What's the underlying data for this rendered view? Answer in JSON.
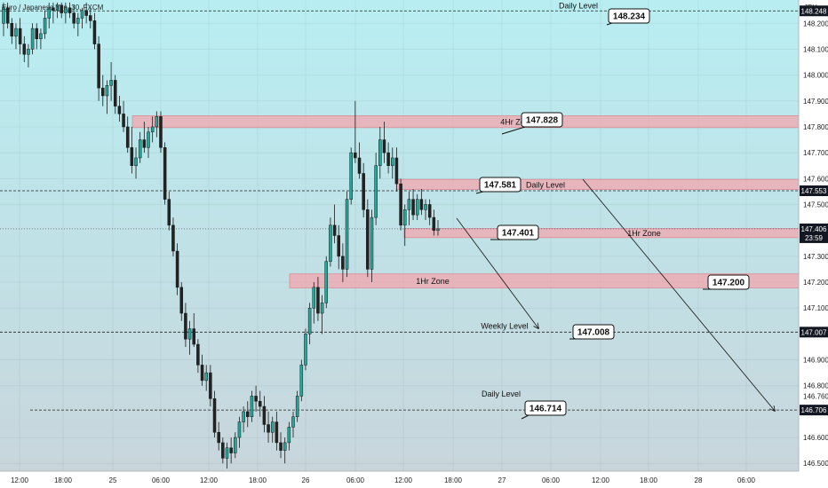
{
  "header": {
    "symbol": "Euro / Japanese Yen, 30, FXCM",
    "currency": "JPY"
  },
  "colors": {
    "bull": "#26a69a",
    "bear": "#222222",
    "zone_fill": "#f4a6ad",
    "zone_stroke": "#e0505c",
    "bg_top": "#b8eef2",
    "bg_bottom": "#c8d6dc",
    "tag_bg": "#131722"
  },
  "chart_data": {
    "type": "candlestick",
    "x_ticks": [
      "12:00",
      "18:00",
      "25",
      "06:00",
      "12:00",
      "18:00",
      "26",
      "06:00",
      "12:00",
      "18:00",
      "27",
      "06:00",
      "12:00",
      "18:00",
      "28",
      "06:00"
    ],
    "y_ticks": [
      "148.248",
      "148.200",
      "148.100",
      "148.000",
      "147.900",
      "147.800",
      "147.700",
      "147.600",
      "147.553",
      "147.500",
      "147.406",
      "147.300",
      "147.200",
      "147.100",
      "147.007",
      "146.900",
      "146.800",
      "146.760",
      "146.706",
      "146.600",
      "146.500"
    ],
    "ylim": [
      146.47,
      148.29
    ],
    "current_price": {
      "value": "147.406",
      "countdown": "23:59"
    },
    "levels": [
      {
        "price": 148.248,
        "label": "Daily Level",
        "tag": "148.248"
      },
      {
        "price": 147.553,
        "label": "Daily Level",
        "tag": "147.553"
      },
      {
        "price": 147.007,
        "label": "Weekly Level",
        "tag": "147.007"
      },
      {
        "price": 146.706,
        "label": "Daily Level",
        "tag": "146.706"
      }
    ],
    "zones": [
      {
        "label": "4Hr Zone",
        "top": 147.843,
        "bottom": 147.797
      },
      {
        "label": "Daily Level",
        "top": 147.597,
        "bottom": 147.558
      },
      {
        "label": "1Hr Zone",
        "top": 147.407,
        "bottom": 147.372
      },
      {
        "label": "1Hr Zone",
        "top": 147.232,
        "bottom": 147.178
      }
    ],
    "callouts": [
      "148.234",
      "147.828",
      "147.581",
      "147.401",
      "147.200",
      "147.008",
      "146.714"
    ],
    "candles": [
      [
        148.2,
        148.28,
        148.15,
        148.26
      ],
      [
        148.26,
        148.28,
        148.18,
        148.2
      ],
      [
        148.2,
        148.22,
        148.12,
        148.15
      ],
      [
        148.15,
        148.2,
        148.1,
        148.18
      ],
      [
        148.18,
        148.22,
        148.08,
        148.12
      ],
      [
        148.12,
        148.15,
        148.05,
        148.08
      ],
      [
        148.08,
        148.12,
        148.03,
        148.1
      ],
      [
        148.1,
        148.2,
        148.08,
        148.18
      ],
      [
        148.18,
        148.2,
        148.1,
        148.14
      ],
      [
        148.14,
        148.18,
        148.1,
        148.16
      ],
      [
        148.16,
        148.25,
        148.14,
        148.22
      ],
      [
        148.22,
        148.28,
        148.18,
        148.26
      ],
      [
        148.26,
        148.28,
        148.2,
        148.25
      ],
      [
        148.25,
        148.28,
        148.22,
        148.27
      ],
      [
        148.27,
        148.28,
        148.22,
        148.24
      ],
      [
        148.24,
        148.28,
        148.2,
        148.26
      ],
      [
        148.26,
        148.28,
        148.22,
        148.24
      ],
      [
        148.24,
        148.27,
        148.18,
        148.2
      ],
      [
        148.2,
        148.24,
        148.15,
        148.22
      ],
      [
        148.22,
        148.26,
        148.18,
        148.25
      ],
      [
        148.25,
        148.28,
        148.2,
        148.23
      ],
      [
        148.23,
        148.26,
        148.18,
        148.21
      ],
      [
        148.21,
        148.24,
        148.1,
        148.12
      ],
      [
        148.12,
        148.15,
        147.9,
        147.95
      ],
      [
        147.95,
        148.0,
        147.88,
        147.92
      ],
      [
        147.92,
        147.98,
        147.85,
        147.96
      ],
      [
        147.96,
        148.05,
        147.9,
        147.98
      ],
      [
        147.98,
        148.0,
        147.85,
        147.88
      ],
      [
        147.88,
        147.92,
        147.82,
        147.85
      ],
      [
        147.85,
        147.9,
        147.78,
        147.8
      ],
      [
        147.8,
        147.84,
        147.7,
        147.72
      ],
      [
        147.72,
        147.8,
        147.62,
        147.65
      ],
      [
        147.65,
        147.72,
        147.6,
        147.68
      ],
      [
        147.68,
        147.78,
        147.66,
        147.75
      ],
      [
        147.75,
        147.82,
        147.7,
        147.72
      ],
      [
        147.72,
        147.8,
        147.68,
        147.78
      ],
      [
        147.78,
        147.84,
        147.74,
        147.8
      ],
      [
        147.8,
        147.86,
        147.76,
        147.84
      ],
      [
        147.84,
        147.86,
        147.7,
        147.72
      ],
      [
        147.72,
        147.74,
        147.5,
        147.52
      ],
      [
        147.52,
        147.55,
        147.4,
        147.42
      ],
      [
        147.42,
        147.45,
        147.3,
        147.32
      ],
      [
        147.32,
        147.35,
        147.15,
        147.18
      ],
      [
        147.18,
        147.2,
        147.05,
        147.08
      ],
      [
        147.08,
        147.12,
        146.95,
        146.98
      ],
      [
        146.98,
        147.05,
        146.92,
        147.02
      ],
      [
        147.02,
        147.08,
        146.95,
        146.96
      ],
      [
        146.96,
        146.98,
        146.85,
        146.88
      ],
      [
        146.88,
        146.92,
        146.8,
        146.82
      ],
      [
        146.82,
        146.88,
        146.78,
        146.85
      ],
      [
        146.85,
        146.88,
        146.72,
        146.75
      ],
      [
        146.75,
        146.78,
        146.6,
        146.62
      ],
      [
        146.62,
        146.66,
        146.55,
        146.58
      ],
      [
        146.58,
        146.6,
        146.5,
        146.52
      ],
      [
        146.52,
        146.58,
        146.48,
        146.56
      ],
      [
        146.56,
        146.6,
        146.5,
        146.54
      ],
      [
        146.54,
        146.62,
        146.52,
        146.6
      ],
      [
        146.6,
        146.68,
        146.56,
        146.66
      ],
      [
        146.66,
        146.72,
        146.62,
        146.7
      ],
      [
        146.7,
        146.74,
        146.64,
        146.68
      ],
      [
        146.68,
        146.78,
        146.66,
        146.76
      ],
      [
        146.76,
        146.8,
        146.7,
        146.74
      ],
      [
        146.74,
        146.78,
        146.68,
        146.72
      ],
      [
        146.72,
        146.76,
        146.62,
        146.65
      ],
      [
        146.65,
        146.7,
        146.58,
        146.62
      ],
      [
        146.62,
        146.68,
        146.58,
        146.66
      ],
      [
        146.66,
        146.7,
        146.55,
        146.58
      ],
      [
        146.58,
        146.62,
        146.52,
        146.55
      ],
      [
        146.55,
        146.6,
        146.5,
        146.58
      ],
      [
        146.58,
        146.66,
        146.55,
        146.64
      ],
      [
        146.64,
        146.7,
        146.6,
        146.68
      ],
      [
        146.68,
        146.78,
        146.66,
        146.76
      ],
      [
        146.76,
        146.9,
        146.74,
        146.88
      ],
      [
        146.88,
        147.02,
        146.86,
        147.0
      ],
      [
        147.0,
        147.12,
        146.96,
        147.1
      ],
      [
        147.1,
        147.2,
        147.04,
        147.18
      ],
      [
        147.18,
        147.22,
        147.05,
        147.08
      ],
      [
        147.08,
        147.15,
        147.0,
        147.12
      ],
      [
        147.12,
        147.3,
        147.1,
        147.28
      ],
      [
        147.28,
        147.45,
        147.26,
        147.42
      ],
      [
        147.42,
        147.5,
        147.35,
        147.38
      ],
      [
        147.38,
        147.42,
        147.25,
        147.3
      ],
      [
        147.3,
        147.35,
        147.2,
        147.25
      ],
      [
        147.25,
        147.55,
        147.22,
        147.52
      ],
      [
        147.52,
        147.72,
        147.5,
        147.7
      ],
      [
        147.7,
        147.9,
        147.66,
        147.68
      ],
      [
        147.68,
        147.74,
        147.6,
        147.62
      ],
      [
        147.62,
        147.66,
        147.45,
        147.48
      ],
      [
        147.48,
        147.52,
        147.22,
        147.25
      ],
      [
        147.25,
        147.48,
        147.2,
        147.45
      ],
      [
        147.45,
        147.7,
        147.42,
        147.65
      ],
      [
        147.65,
        147.8,
        147.6,
        147.75
      ],
      [
        147.75,
        147.82,
        147.66,
        147.7
      ],
      [
        147.7,
        147.74,
        147.62,
        147.65
      ],
      [
        147.65,
        147.72,
        147.6,
        147.68
      ],
      [
        147.68,
        147.72,
        147.55,
        147.58
      ],
      [
        147.58,
        147.6,
        147.4,
        147.42
      ],
      [
        147.42,
        147.5,
        147.34,
        147.48
      ],
      [
        147.48,
        147.55,
        147.42,
        147.52
      ],
      [
        147.52,
        147.56,
        147.44,
        147.46
      ],
      [
        147.46,
        147.54,
        147.44,
        147.52
      ],
      [
        147.52,
        147.56,
        147.46,
        147.48
      ],
      [
        147.48,
        147.52,
        147.44,
        147.5
      ],
      [
        147.5,
        147.52,
        147.42,
        147.45
      ],
      [
        147.45,
        147.48,
        147.38,
        147.4
      ],
      [
        147.4,
        147.44,
        147.38,
        147.406
      ]
    ]
  }
}
